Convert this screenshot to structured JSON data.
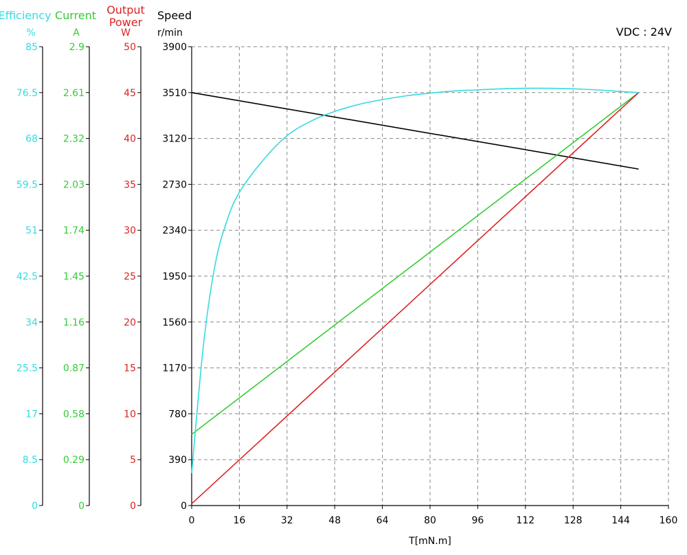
{
  "chart_data": {
    "type": "line",
    "title": "",
    "annotation": "VDC : 24V",
    "xlabel": "T[mN.m]",
    "x_ticks": [
      "0",
      "16",
      "32",
      "48",
      "64",
      "80",
      "96",
      "112",
      "128",
      "144",
      "160"
    ],
    "xlim": [
      0,
      160
    ],
    "grid": true,
    "axes": {
      "efficiency": {
        "label": "Efficiency",
        "unit": "%",
        "color": "#33dbe0",
        "ylim": [
          0,
          85
        ],
        "ticks": [
          "0",
          "8.5",
          "17",
          "25.5",
          "34",
          "42.5",
          "51",
          "59.5",
          "68",
          "76.5",
          "85"
        ]
      },
      "current": {
        "label": "Current",
        "unit": "A",
        "color": "#33cc33",
        "ylim": [
          0,
          2.9
        ],
        "ticks": [
          "0",
          "0.29",
          "0.58",
          "0.87",
          "1.16",
          "1.45",
          "1.74",
          "2.03",
          "2.32",
          "2.61",
          "2.9"
        ]
      },
      "power": {
        "label": "Output Power",
        "label_lines": [
          "Output",
          "Power"
        ],
        "unit": "W",
        "color": "#dd2222",
        "ylim": [
          0,
          50
        ],
        "ticks": [
          "0",
          "5",
          "10",
          "15",
          "20",
          "25",
          "30",
          "35",
          "40",
          "45",
          "50"
        ]
      },
      "speed": {
        "label": "Speed",
        "unit": "r/min",
        "color": "#000000",
        "ylim": [
          0,
          3900
        ],
        "ticks": [
          "0",
          "390",
          "780",
          "1170",
          "1560",
          "1950",
          "2340",
          "2730",
          "3120",
          "3510",
          "3900"
        ]
      }
    },
    "series": [
      {
        "name": "Speed",
        "axis": "speed",
        "color": "#000000",
        "points": [
          [
            0,
            3510
          ],
          [
            150,
            2860
          ]
        ]
      },
      {
        "name": "Current",
        "axis": "current",
        "color": "#33cc33",
        "points": [
          [
            0,
            0.45
          ],
          [
            150,
            2.61
          ]
        ]
      },
      {
        "name": "Output Power",
        "axis": "power",
        "color": "#dd2222",
        "points": [
          [
            0,
            0.2
          ],
          [
            150,
            45
          ]
        ]
      },
      {
        "name": "Efficiency",
        "axis": "efficiency",
        "color": "#33dbe0",
        "points": [
          [
            0,
            6
          ],
          [
            4,
            30
          ],
          [
            8,
            45
          ],
          [
            12,
            53
          ],
          [
            16,
            58
          ],
          [
            24,
            64
          ],
          [
            32,
            68.5
          ],
          [
            40,
            71.2
          ],
          [
            48,
            73
          ],
          [
            56,
            74.3
          ],
          [
            64,
            75.2
          ],
          [
            72,
            75.9
          ],
          [
            80,
            76.4
          ],
          [
            88,
            76.8
          ],
          [
            96,
            77
          ],
          [
            104,
            77.2
          ],
          [
            112,
            77.3
          ],
          [
            120,
            77.3
          ],
          [
            128,
            77.2
          ],
          [
            136,
            77
          ],
          [
            144,
            76.7
          ],
          [
            150,
            76.5
          ]
        ]
      }
    ]
  }
}
